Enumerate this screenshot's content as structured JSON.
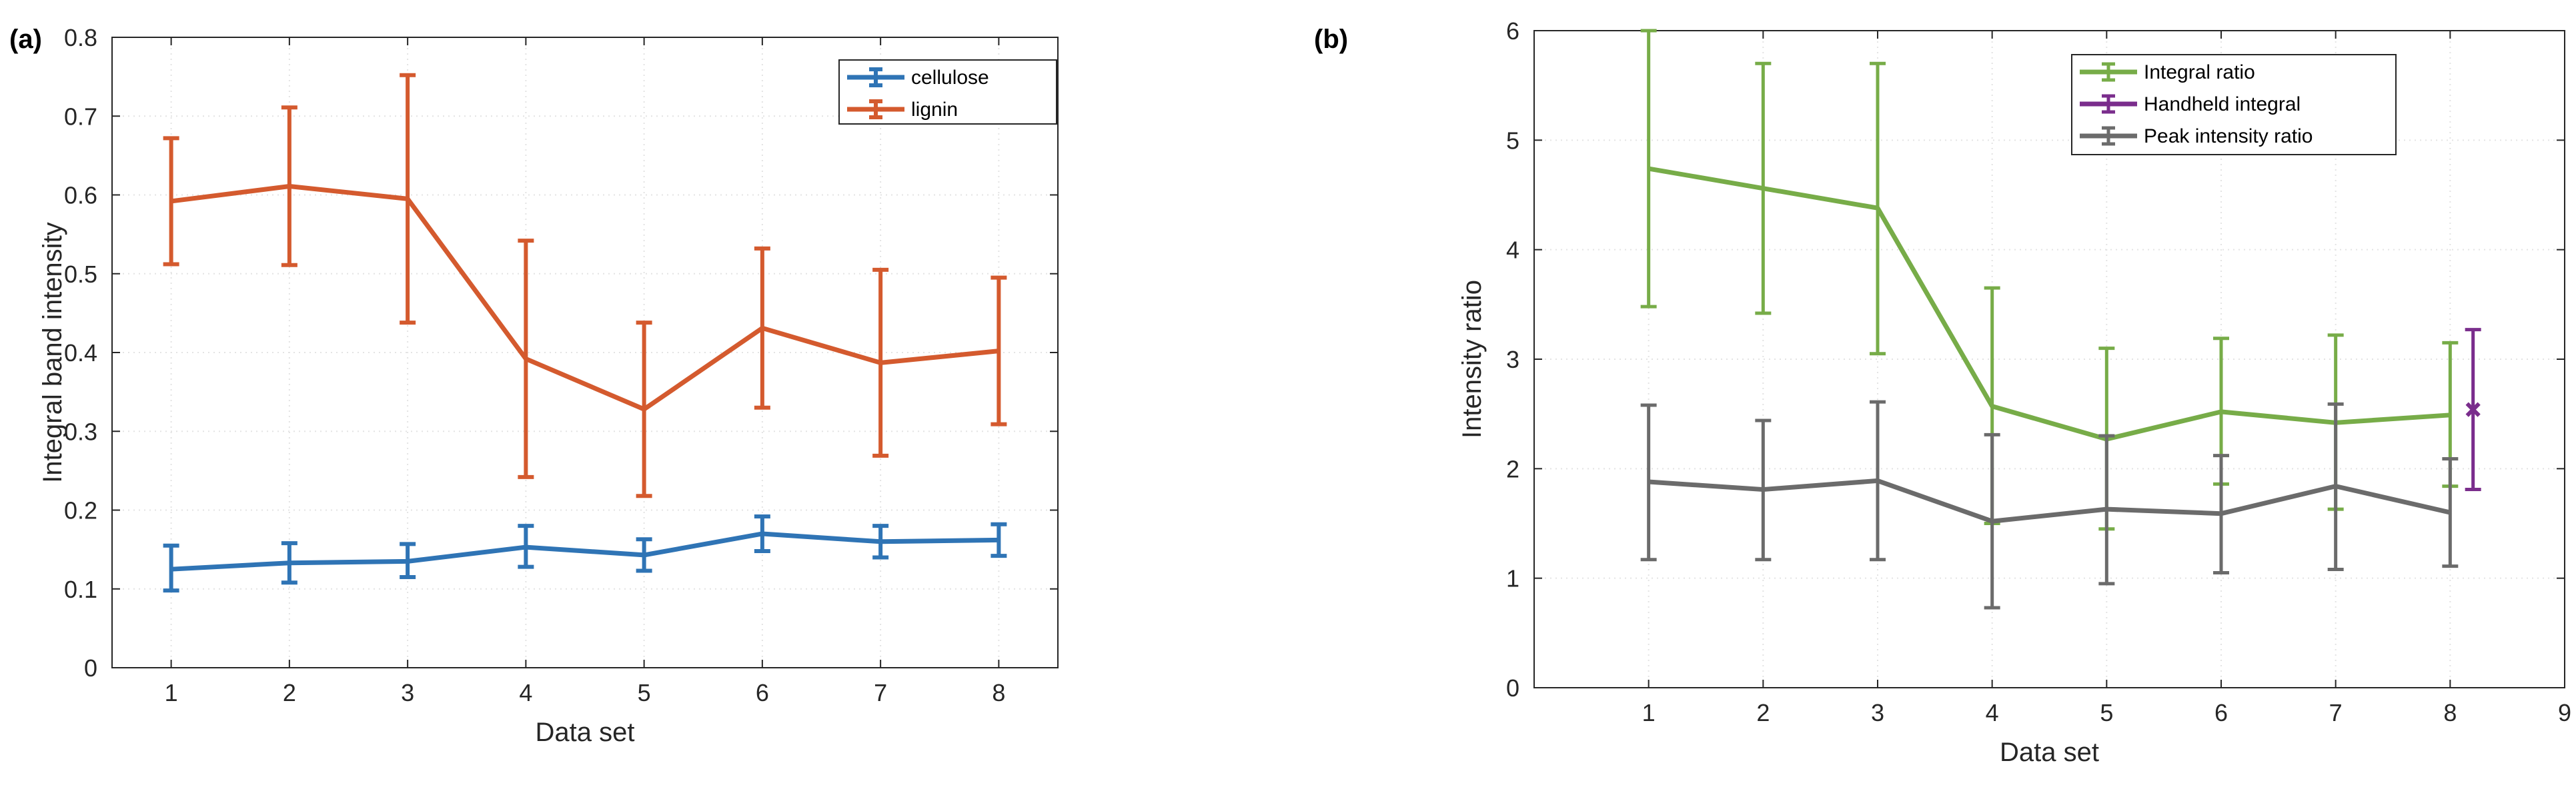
{
  "chart_data": [
    {
      "panel_label": "(a)",
      "type": "line",
      "xlabel": "Data set",
      "ylabel": "Integral band intensity",
      "xlim": [
        0.5,
        8.5
      ],
      "ylim": [
        0,
        0.8
      ],
      "xticks": [
        1,
        2,
        3,
        4,
        5,
        6,
        7,
        8
      ],
      "yticks": [
        0,
        0.1,
        0.2,
        0.3,
        0.4,
        0.5,
        0.6,
        0.7,
        0.8
      ],
      "ytick_labels": [
        "0",
        "0.1",
        "0.2",
        "0.3",
        "0.4",
        "0.5",
        "0.6",
        "0.7",
        "0.8"
      ],
      "grid": true,
      "legend": "top-right",
      "series": [
        {
          "name": "cellulose",
          "color": "#2f74b5",
          "x": [
            1,
            2,
            3,
            4,
            5,
            6,
            7,
            8
          ],
          "values": [
            0.125,
            0.133,
            0.135,
            0.153,
            0.143,
            0.17,
            0.16,
            0.162
          ],
          "err_low": [
            0.027,
            0.025,
            0.02,
            0.025,
            0.02,
            0.022,
            0.02,
            0.02
          ],
          "err_high": [
            0.03,
            0.025,
            0.022,
            0.027,
            0.02,
            0.022,
            0.02,
            0.02
          ]
        },
        {
          "name": "lignin",
          "color": "#d45a2e",
          "x": [
            1,
            2,
            3,
            4,
            5,
            6,
            7,
            8
          ],
          "values": [
            0.592,
            0.611,
            0.595,
            0.392,
            0.328,
            0.431,
            0.387,
            0.402
          ],
          "err_low": [
            0.08,
            0.1,
            0.157,
            0.15,
            0.11,
            0.101,
            0.118,
            0.093
          ],
          "err_high": [
            0.08,
            0.1,
            0.157,
            0.15,
            0.11,
            0.101,
            0.118,
            0.093
          ]
        }
      ]
    },
    {
      "panel_label": "(b)",
      "type": "line",
      "xlabel": "Data set",
      "ylabel": "Intensity ratio",
      "xlim": [
        0,
        9
      ],
      "ylim": [
        0,
        6
      ],
      "xticks": [
        1,
        2,
        3,
        4,
        5,
        6,
        7,
        8,
        9
      ],
      "yticks": [
        0,
        1,
        2,
        3,
        4,
        5,
        6
      ],
      "ytick_labels": [
        "0",
        "1",
        "2",
        "3",
        "4",
        "5",
        "6"
      ],
      "grid": true,
      "legend": "top-right",
      "series": [
        {
          "name": "Integral ratio",
          "color": "#77ac48",
          "x": [
            1,
            2,
            3,
            4,
            5,
            6,
            7,
            8
          ],
          "values": [
            4.74,
            4.56,
            4.38,
            2.57,
            2.27,
            2.52,
            2.42,
            2.49
          ],
          "err_low": [
            1.26,
            1.14,
            1.33,
            1.07,
            0.82,
            0.66,
            0.79,
            0.65
          ],
          "err_high": [
            1.26,
            1.14,
            1.32,
            1.08,
            0.83,
            0.67,
            0.8,
            0.66
          ]
        },
        {
          "name": "Handheld integral",
          "color": "#7a2d8c",
          "x": [
            8.2
          ],
          "values": [
            2.54
          ],
          "err_low": [
            0.73
          ],
          "err_high": [
            0.73
          ]
        },
        {
          "name": "Peak intensity ratio",
          "color": "#6b6b6b",
          "x": [
            1,
            2,
            3,
            4,
            5,
            6,
            7,
            8
          ],
          "values": [
            1.88,
            1.81,
            1.89,
            1.52,
            1.63,
            1.59,
            1.84,
            1.6
          ],
          "err_low": [
            0.71,
            0.64,
            0.72,
            0.79,
            0.68,
            0.54,
            0.76,
            0.49
          ],
          "err_high": [
            0.7,
            0.63,
            0.72,
            0.79,
            0.67,
            0.53,
            0.75,
            0.49
          ]
        }
      ]
    }
  ]
}
